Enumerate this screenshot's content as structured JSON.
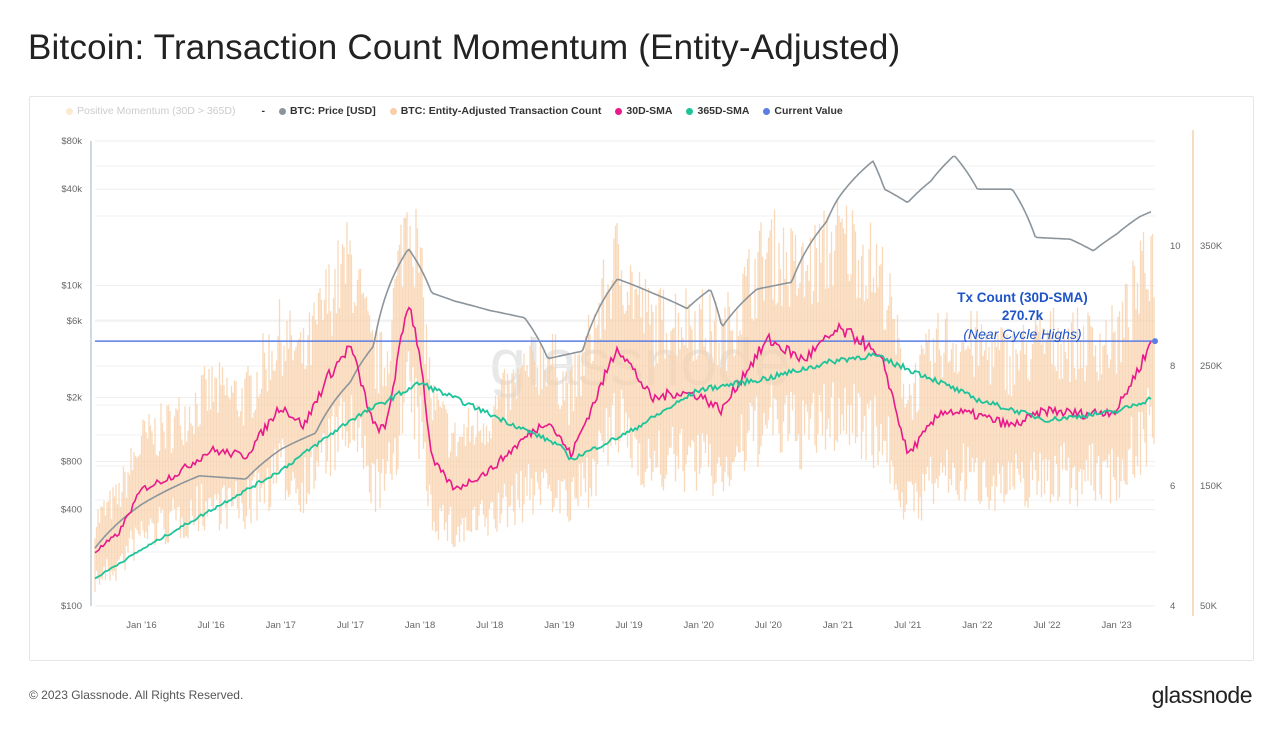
{
  "title": "Bitcoin: Transaction Count Momentum (Entity-Adjusted)",
  "footer": "© 2023 Glassnode. All Rights Reserved.",
  "brand": "glassnode",
  "watermark": "glassnode",
  "legend": [
    {
      "label": "Positive Momentum (30D > 365D)",
      "color": "#fbe9d0",
      "faded": true
    },
    {
      "label": "-",
      "color": null
    },
    {
      "label": "BTC: Price [USD]",
      "color": "#8c959b"
    },
    {
      "label": "BTC: Entity-Adjusted Transaction Count",
      "color": "#f8cfa8"
    },
    {
      "label": "30D-SMA",
      "color": "#e8198b"
    },
    {
      "label": "365D-SMA",
      "color": "#1fc39a"
    },
    {
      "label": "Current Value",
      "color": "#5b7ee5"
    }
  ],
  "annotation": {
    "title": "Tx Count (30D-SMA)",
    "value": "270.7k",
    "note": "(Near Cycle Highs)",
    "color": "#1f54c8"
  },
  "chart_data": {
    "type": "line",
    "x_ticks": [
      "Jan '16",
      "Jul '16",
      "Jan '17",
      "Jul '17",
      "Jan '18",
      "Jul '18",
      "Jan '19",
      "Jul '19",
      "Jan '20",
      "Jul '20",
      "Jan '21",
      "Jul '21",
      "Jan '22",
      "Jul '22",
      "Jan '23"
    ],
    "y_left": {
      "label": "",
      "scale": "log",
      "ticks": [
        "$100",
        "$400",
        "$800",
        "$2k",
        "$6k",
        "$10k",
        "$40k",
        "$80k"
      ],
      "tick_values": [
        100,
        400,
        800,
        2000,
        6000,
        10000,
        40000,
        80000
      ],
      "range": [
        100,
        80000
      ]
    },
    "y_right_inner": {
      "ticks": [
        "4",
        "6",
        "8",
        "10"
      ]
    },
    "y_right": {
      "ticks": [
        "50K",
        "150K",
        "250K",
        "350K"
      ],
      "tick_values": [
        50,
        150,
        250,
        350
      ],
      "range": [
        50,
        350
      ],
      "unit": "K"
    },
    "current_value_k": 270.7,
    "series": [
      {
        "name": "BTC: Price [USD]",
        "color": "#8c959b",
        "axis": "left",
        "points": [
          [
            "2015-09",
            230
          ],
          [
            "2016-01",
            430
          ],
          [
            "2016-06",
            650
          ],
          [
            "2016-10",
            620
          ],
          [
            "2017-01",
            950
          ],
          [
            "2017-04",
            1200
          ],
          [
            "2017-07",
            2500
          ],
          [
            "2017-09",
            4200
          ],
          [
            "2017-12",
            17000
          ],
          [
            "2018-02",
            9000
          ],
          [
            "2018-04",
            8000
          ],
          [
            "2018-07",
            7000
          ],
          [
            "2018-10",
            6300
          ],
          [
            "2018-12",
            3500
          ],
          [
            "2019-03",
            3900
          ],
          [
            "2019-06",
            11000
          ],
          [
            "2019-09",
            9000
          ],
          [
            "2019-12",
            7200
          ],
          [
            "2020-02",
            9500
          ],
          [
            "2020-03",
            5500
          ],
          [
            "2020-06",
            9500
          ],
          [
            "2020-09",
            10500
          ],
          [
            "2020-12",
            25000
          ],
          [
            "2021-01",
            35000
          ],
          [
            "2021-04",
            60000
          ],
          [
            "2021-05",
            40000
          ],
          [
            "2021-07",
            33000
          ],
          [
            "2021-09",
            45000
          ],
          [
            "2021-11",
            65000
          ],
          [
            "2022-01",
            40000
          ],
          [
            "2022-04",
            40000
          ],
          [
            "2022-06",
            20000
          ],
          [
            "2022-09",
            19500
          ],
          [
            "2022-11",
            16500
          ],
          [
            "2023-01",
            21000
          ],
          [
            "2023-03",
            27000
          ],
          [
            "2023-04",
            29000
          ]
        ]
      },
      {
        "name": "30D-SMA",
        "color": "#e8198b",
        "axis": "right",
        "points": [
          [
            "2015-09",
            95
          ],
          [
            "2015-11",
            110
          ],
          [
            "2016-01",
            147
          ],
          [
            "2016-04",
            160
          ],
          [
            "2016-07",
            180
          ],
          [
            "2016-10",
            175
          ],
          [
            "2017-01",
            217
          ],
          [
            "2017-03",
            200
          ],
          [
            "2017-05",
            240
          ],
          [
            "2017-07",
            267
          ],
          [
            "2017-09",
            200
          ],
          [
            "2017-10",
            197
          ],
          [
            "2017-12",
            305
          ],
          [
            "2018-01",
            260
          ],
          [
            "2018-02",
            172
          ],
          [
            "2018-04",
            147
          ],
          [
            "2018-07",
            163
          ],
          [
            "2018-10",
            190
          ],
          [
            "2018-12",
            205
          ],
          [
            "2019-02",
            176
          ],
          [
            "2019-04",
            220
          ],
          [
            "2019-06",
            267
          ],
          [
            "2019-09",
            222
          ],
          [
            "2019-11",
            228
          ],
          [
            "2020-01",
            226
          ],
          [
            "2020-03",
            213
          ],
          [
            "2020-05",
            245
          ],
          [
            "2020-07",
            272
          ],
          [
            "2020-10",
            255
          ],
          [
            "2021-01",
            280
          ],
          [
            "2021-03",
            272
          ],
          [
            "2021-05",
            250
          ],
          [
            "2021-07",
            176
          ],
          [
            "2021-10",
            213
          ],
          [
            "2022-01",
            209
          ],
          [
            "2022-04",
            200
          ],
          [
            "2022-07",
            213
          ],
          [
            "2022-10",
            210
          ],
          [
            "2023-01",
            213
          ],
          [
            "2023-03",
            250
          ],
          [
            "2023-04",
            270.7
          ]
        ]
      },
      {
        "name": "365D-SMA",
        "color": "#1fc39a",
        "axis": "right",
        "points": [
          [
            "2015-09",
            73
          ],
          [
            "2016-01",
            97
          ],
          [
            "2016-07",
            130
          ],
          [
            "2017-01",
            163
          ],
          [
            "2017-07",
            205
          ],
          [
            "2018-01",
            236
          ],
          [
            "2018-07",
            210
          ],
          [
            "2019-01",
            184
          ],
          [
            "2019-02",
            172
          ],
          [
            "2019-07",
            195
          ],
          [
            "2020-01",
            230
          ],
          [
            "2020-07",
            240
          ],
          [
            "2021-01",
            255
          ],
          [
            "2021-04",
            259
          ],
          [
            "2021-09",
            240
          ],
          [
            "2022-01",
            222
          ],
          [
            "2022-07",
            205
          ],
          [
            "2023-01",
            212
          ],
          [
            "2023-04",
            223
          ]
        ]
      }
    ]
  }
}
